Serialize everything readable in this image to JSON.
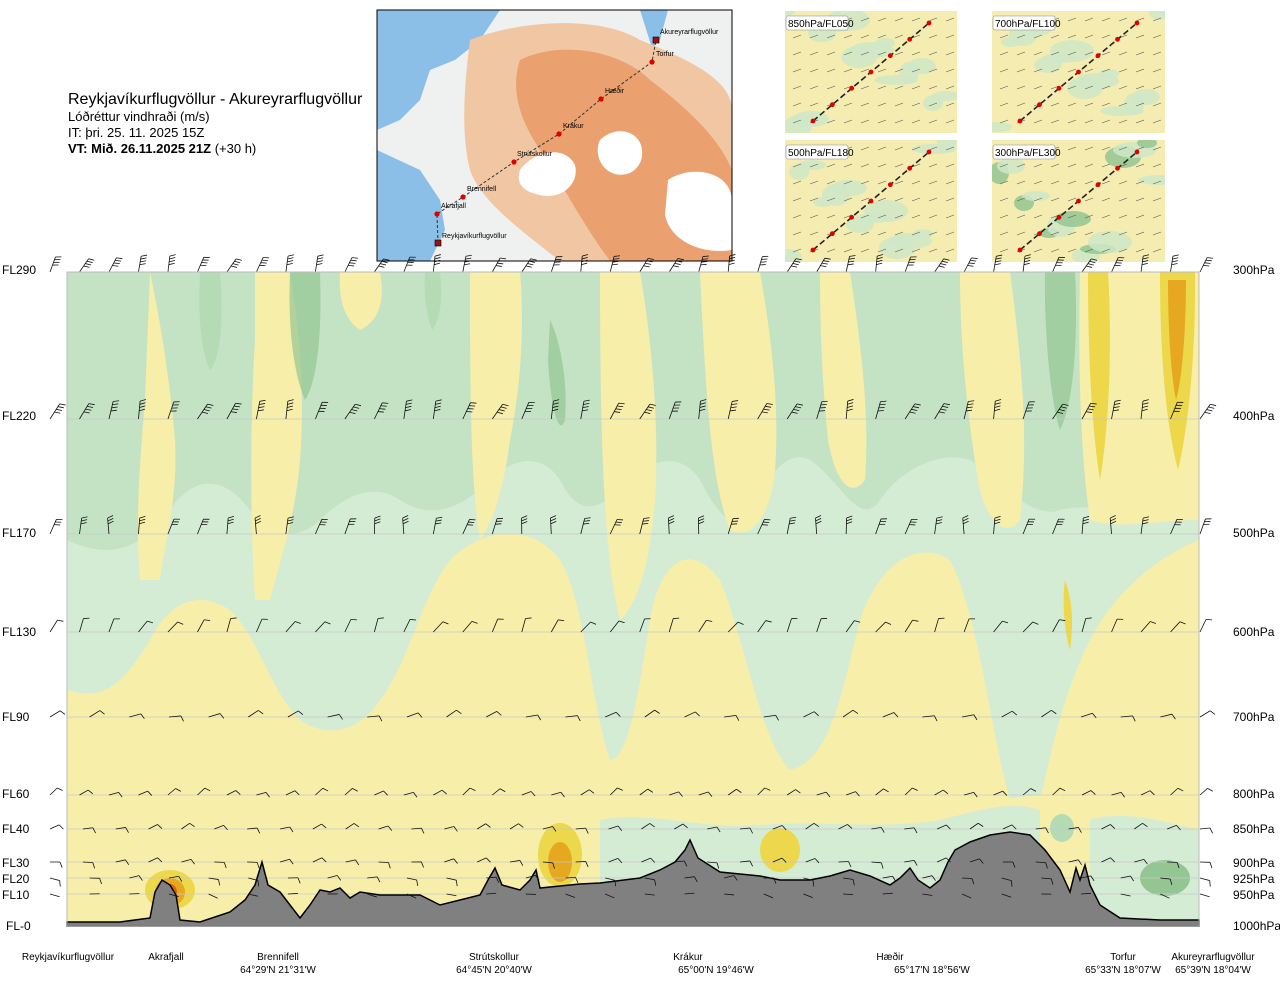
{
  "header": {
    "title": "Reykjavíkurflugvöllur - Akureyrarflugvöllur",
    "subtitle": "Lóðréttur vindhraði (m/s)",
    "issue_time": "IT: þri. 25. 11. 2025 15Z",
    "valid_label": "VT: Mið. 26.11.2025 21Z",
    "valid_offset": "(+30 h)"
  },
  "map": {
    "route_points": [
      "Akureyrarflugvöllur",
      "Torfur",
      "Hæðir",
      "Krákur",
      "Strútskollur",
      "Brennifell",
      "Akrafjall",
      "Reykjavíkurflugvöllur"
    ],
    "colors": {
      "sea": "#7fb8e6",
      "land_low": "#f1f0ec",
      "land_high": "#e9a274",
      "glacier": "#ffffff",
      "route": "#d40000"
    }
  },
  "level_maps": [
    {
      "label": "850hPa/FL050"
    },
    {
      "label": "700hPa/FL100"
    },
    {
      "label": "500hPa/FL180"
    },
    {
      "label": "300hPa/FL300"
    }
  ],
  "chart_data": {
    "type": "heatmap",
    "title": "Lóðréttur vindhraði (m/s)",
    "y_left_ticks": [
      "FL290",
      "FL220",
      "FL170",
      "FL130",
      "FL90",
      "FL60",
      "FL40",
      "FL30",
      "FL20",
      "FL10",
      "FL-0"
    ],
    "y_right_ticks": [
      "300hPa",
      "400hPa",
      "500hPa",
      "600hPa",
      "700hPa",
      "800hPa",
      "850hPa",
      "900hPa",
      "925hPa",
      "950hPa",
      "1000hPa"
    ],
    "pressure_levels_hpa": [
      300,
      400,
      500,
      600,
      700,
      800,
      850,
      900,
      925,
      950,
      1000
    ],
    "waypoints": [
      {
        "name": "Reykjavíkurflugvöllur",
        "coord": ""
      },
      {
        "name": "Akrafjall",
        "coord": ""
      },
      {
        "name": "Brennifell",
        "coord": "64°29'N 21°31'W"
      },
      {
        "name": "Strútskollur",
        "coord": "64°45'N 20°40'W"
      },
      {
        "name": "Krákur",
        "coord": "65°00'N 19°46'W"
      },
      {
        "name": "Hæðir",
        "coord": "65°17'N 18°56'W"
      },
      {
        "name": "Torfur",
        "coord": "65°33'N 18°07'W"
      },
      {
        "name": "Akureyrarflugvöllur",
        "coord": "65°39'N 18°04'W"
      }
    ],
    "colors": {
      "strong_down": "#93c693",
      "down": "#b5dbb5",
      "weak_down": "#d4ecd4",
      "near_zero_down": "#f0f8e8",
      "near_zero_up": "#fbf6dc",
      "weak_up": "#f7eeaa",
      "up": "#ecd84a",
      "strong_up": "#e6a820",
      "very_strong_up": "#d86010",
      "terrain": "#808080"
    },
    "grid": true
  }
}
